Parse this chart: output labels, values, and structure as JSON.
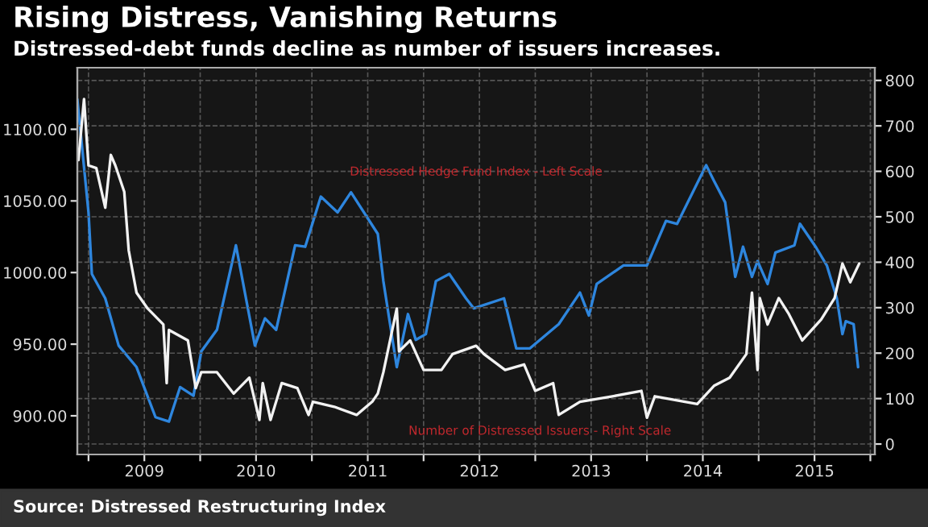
{
  "chart_data": {
    "type": "line",
    "title": "Rising Distress, Vanishing Returns",
    "subtitle": "Distressed-debt funds decline as number of issuers increases.",
    "annotations": [
      "Distressed Hedge Fund Index - Left Scale",
      "Number of Distressed Issuers - Right Scale",
      "Source: Distressed Restructuring Index"
    ],
    "series": [
      {
        "color": "#2e86de",
        "x": [
          2008.9,
          2009.0,
          2009.03,
          2009.15,
          2009.27,
          2009.43,
          2009.6,
          2009.72,
          2009.82,
          2009.94,
          2010.01,
          2010.15,
          2010.32,
          2010.49,
          2010.58,
          2010.68,
          2010.85,
          2010.94,
          2011.08,
          2011.23,
          2011.35,
          2011.59,
          2011.64,
          2011.76,
          2011.86,
          2011.93,
          2012.02,
          2012.11,
          2012.23,
          2012.38,
          2012.45,
          2012.72,
          2012.83,
          2012.95,
          2013.21,
          2013.4,
          2013.48,
          2013.55,
          2013.79,
          2014.0,
          2014.17,
          2014.27,
          2014.53,
          2014.6,
          2014.7,
          2014.79,
          2014.86,
          2014.94,
          2014.99,
          2015.08,
          2015.15,
          2015.32,
          2015.37,
          2015.51,
          2015.61,
          2015.7,
          2015.75,
          2015.78,
          2015.85,
          2015.89
        ],
        "values": [
          1121,
          1042,
          999,
          982,
          949,
          934,
          899,
          896,
          920,
          914,
          945,
          960,
          1019,
          949,
          968,
          960,
          1019,
          1018,
          1053,
          1042,
          1056,
          1027,
          994,
          934,
          971,
          953,
          957,
          994,
          999,
          982,
          975,
          982,
          947,
          947,
          964,
          986,
          970,
          992,
          1005,
          1005,
          1036,
          1034,
          1075,
          1064,
          1049,
          997,
          1018,
          997,
          1008,
          992,
          1014,
          1019,
          1034,
          1018,
          1005,
          982,
          957,
          966,
          964,
          934
        ]
      },
      {
        "color": "#f2f2f2",
        "axis": "y2",
        "x": [
          2008.91,
          2008.96,
          2009.0,
          2009.07,
          2009.15,
          2009.2,
          2009.24,
          2009.32,
          2009.36,
          2009.43,
          2009.53,
          2009.67,
          2009.7,
          2009.72,
          2009.89,
          2009.96,
          2010.01,
          2010.15,
          2010.3,
          2010.44,
          2010.53,
          2010.56,
          2010.63,
          2010.73,
          2010.87,
          2010.97,
          2011.01,
          2011.2,
          2011.4,
          2011.54,
          2011.59,
          2011.64,
          2011.76,
          2011.78,
          2011.88,
          2012.0,
          2012.16,
          2012.26,
          2012.47,
          2012.54,
          2012.73,
          2012.9,
          2013.0,
          2013.16,
          2013.21,
          2013.4,
          2013.69,
          2013.95,
          2014.0,
          2014.07,
          2014.45,
          2014.6,
          2014.74,
          2014.89,
          2014.94,
          2014.99,
          2015.01,
          2015.08,
          2015.18,
          2015.27,
          2015.39,
          2015.56,
          2015.68,
          2015.75,
          2015.82,
          2015.9
        ],
        "values": [
          625,
          759,
          613,
          607,
          520,
          636,
          613,
          555,
          426,
          333,
          298,
          263,
          134,
          251,
          228,
          123,
          158,
          158,
          111,
          146,
          53,
          134,
          53,
          134,
          123,
          64,
          93,
          82,
          64,
          93,
          111,
          158,
          298,
          204,
          228,
          163,
          163,
          198,
          216,
          198,
          163,
          175,
          117,
          134,
          64,
          93,
          105,
          117,
          58,
          105,
          88,
          128,
          146,
          198,
          333,
          163,
          321,
          263,
          321,
          286,
          228,
          274,
          321,
          397,
          356,
          397
        ]
      }
    ],
    "xlim": [
      2008.9,
      2016.04
    ],
    "xticks": [
      {
        "value": 2009.0,
        "label": null
      },
      {
        "value": 2009.5,
        "label": "2009"
      },
      {
        "value": 2010.0,
        "label": null
      },
      {
        "value": 2010.5,
        "label": "2010"
      },
      {
        "value": 2011.0,
        "label": null
      },
      {
        "value": 2011.5,
        "label": "2011"
      },
      {
        "value": 2012.0,
        "label": null
      },
      {
        "value": 2012.5,
        "label": "2012"
      },
      {
        "value": 2013.0,
        "label": null
      },
      {
        "value": 2013.5,
        "label": "2013"
      },
      {
        "value": 2014.0,
        "label": null
      },
      {
        "value": 2014.5,
        "label": "2014"
      },
      {
        "value": 2015.0,
        "label": null
      },
      {
        "value": 2015.5,
        "label": "2015"
      },
      {
        "value": 2016.0,
        "label": null
      }
    ],
    "ylim": [
      873,
      1143
    ],
    "yticks": [
      {
        "value": 900,
        "label": "900.00"
      },
      {
        "value": 950,
        "label": "950.00"
      },
      {
        "value": 1000,
        "label": "1000.00"
      },
      {
        "value": 1050,
        "label": "1050.00"
      },
      {
        "value": 1100,
        "label": "1100.00"
      }
    ],
    "y2lim": [
      -23,
      828
    ],
    "y2ticks": [
      0,
      100,
      200,
      300,
      400,
      500,
      600,
      700,
      800
    ],
    "grid": true,
    "legend": false,
    "line_style": "solid",
    "marker": "none"
  }
}
